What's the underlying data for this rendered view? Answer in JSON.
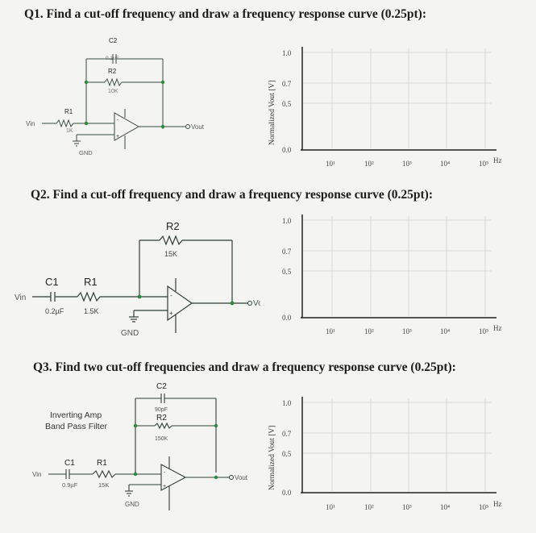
{
  "questions": [
    {
      "title": "Q1. Find a cut-off frequency and draw a frequency response curve (0.25pt):",
      "circuit": {
        "vin": "Vin",
        "vout": "Vout",
        "gnd": "GND",
        "r1_name": "R1",
        "r1_value": "1K",
        "r2_name": "R2",
        "r2_value": "10K",
        "c2_name": "C2",
        "c2_value": "0.1uF"
      }
    },
    {
      "title": "Q2. Find a cut-off frequency and draw a frequency response curve (0.25pt):",
      "circuit": {
        "vin": "Vin",
        "vout": "Vout",
        "gnd": "GND",
        "r2_name": "R2",
        "r2_value": "15K",
        "c1_name": "C1",
        "c1_value": "0.2µF",
        "r1_name": "R1",
        "r1_value": "1.5K"
      }
    },
    {
      "title": "Q3. Find two cut-off frequencies and draw a frequency response curve (0.25pt):",
      "circuit": {
        "label_line1": "Inverting Amp",
        "label_line2": "Band Pass Filter",
        "vin": "Vin",
        "vout": "Vout",
        "gnd": "GND",
        "c2_name": "C2",
        "c2_value": "90pF",
        "r2_name": "R2",
        "r2_value": "150K",
        "c1_name": "C1",
        "c1_value": "0.9µF",
        "r1_name": "R1",
        "r1_value": "15K"
      }
    }
  ],
  "graph": {
    "ylabel": "Normalized Vout [V]",
    "yticks": [
      "1.0",
      "0.7",
      "0.5",
      "0.0"
    ],
    "xticks": [
      "10¹",
      "10²",
      "10³",
      "10⁴",
      "10⁵"
    ],
    "xunit": "Hz"
  }
}
